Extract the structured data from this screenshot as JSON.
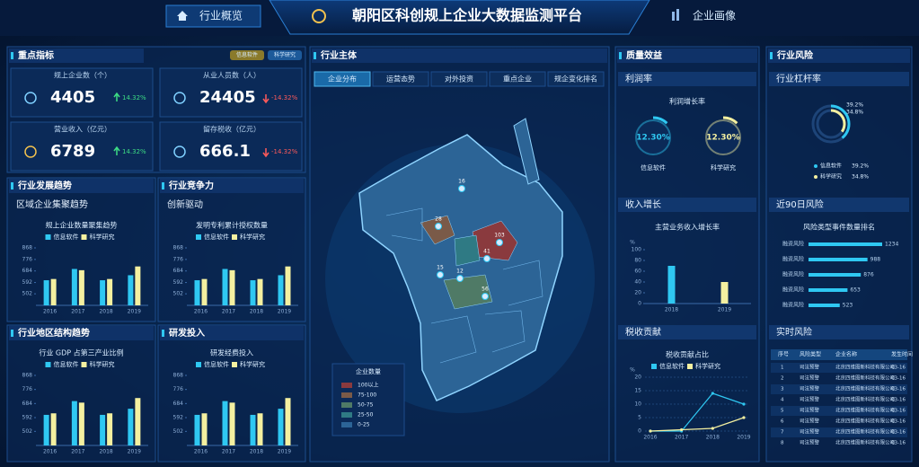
{
  "header": {
    "nav_left": "行业概览",
    "title": "朝阳区科创规上企业大数据监测平台",
    "nav_right": "企业画像"
  },
  "indicators": {
    "title": "重点指标",
    "tags": [
      "信息软件",
      "科学研究"
    ],
    "cards": [
      {
        "label": "规上企业数（个）",
        "value": 4405,
        "change": "14.32%",
        "trend": "up"
      },
      {
        "label": "从业人员数（人）",
        "value": 24405,
        "change": "-14.32%",
        "trend": "down"
      },
      {
        "label": "营业收入（亿元）",
        "value": 6789,
        "change": "14.32%",
        "trend": "up"
      },
      {
        "label": "留存税收（亿元）",
        "value": 666.1,
        "change": "-14.32%",
        "trend": "down"
      }
    ]
  },
  "small_panels": [
    {
      "title": "行业发展趋势",
      "subtitle": "区域企业集聚趋势",
      "chart_data": {
        "type": "bar",
        "title": "规上企业数量聚集趋势",
        "categories": [
          "2016",
          "2017",
          "2018",
          "2019"
        ],
        "series": [
          {
            "name": "信息软件",
            "color": "#2fc8f2",
            "values": [
              610,
              700,
              610,
              650
            ]
          },
          {
            "name": "科学研究",
            "color": "#f4f0a0",
            "values": [
              620,
              690,
              620,
              720
            ]
          }
        ],
        "ylim": [
          410,
          868
        ],
        "yticks": [
          502,
          592,
          684,
          776,
          868
        ]
      }
    },
    {
      "title": "行业竞争力",
      "subtitle": "创新驱动",
      "chart_data": {
        "type": "bar",
        "title": "发明专利累计授权数量",
        "categories": [
          "2016",
          "2017",
          "2018",
          "2019"
        ],
        "series": [
          {
            "name": "信息软件",
            "color": "#2fc8f2",
            "values": [
              610,
              700,
              610,
              650
            ]
          },
          {
            "name": "科学研究",
            "color": "#f4f0a0",
            "values": [
              620,
              690,
              620,
              720
            ]
          }
        ],
        "ylim": [
          410,
          868
        ],
        "yticks": [
          502,
          592,
          684,
          776,
          868
        ]
      }
    },
    {
      "title": "行业地区结构趋势",
      "chart_data": {
        "type": "bar",
        "title": "行业 GDP 占第三产业比例",
        "categories": [
          "2016",
          "2017",
          "2018",
          "2019"
        ],
        "series": [
          {
            "name": "信息软件",
            "color": "#2fc8f2",
            "values": [
              610,
              700,
              610,
              650
            ]
          },
          {
            "name": "科学研究",
            "color": "#f4f0a0",
            "values": [
              620,
              690,
              620,
              720
            ]
          }
        ],
        "ylim": [
          410,
          868
        ],
        "yticks": [
          502,
          592,
          684,
          776,
          868
        ]
      }
    },
    {
      "title": "研发投入",
      "chart_data": {
        "type": "bar",
        "title": "研发经费投入",
        "categories": [
          "2016",
          "2017",
          "2018",
          "2019"
        ],
        "series": [
          {
            "name": "信息软件",
            "color": "#2fc8f2",
            "values": [
              610,
              700,
              610,
              650
            ]
          },
          {
            "name": "科学研究",
            "color": "#f4f0a0",
            "values": [
              620,
              690,
              620,
              720
            ]
          }
        ],
        "ylim": [
          410,
          868
        ],
        "yticks": [
          502,
          592,
          684,
          776,
          868
        ]
      }
    }
  ],
  "distribution": {
    "title": "行业主体",
    "tabs": [
      "企业分布",
      "运营态势",
      "对外投资",
      "重点企业",
      "规企变化排名"
    ],
    "active_tab": 0,
    "markers": [
      16,
      28,
      103,
      56,
      15,
      12,
      41
    ],
    "legend_title": "企业数量",
    "legend": [
      {
        "label": "100以上",
        "color": "#8a3a3e"
      },
      {
        "label": "75-100",
        "color": "#7a5a48"
      },
      {
        "label": "50-75",
        "color": "#4f7a66"
      },
      {
        "label": "25-50",
        "color": "#2f7a84"
      },
      {
        "label": "0-25",
        "color": "#2c6496"
      }
    ]
  },
  "quality": {
    "title": "质量效益",
    "profit": {
      "title": "利润率",
      "chart_data": {
        "type": "ring",
        "title": "利润增长率",
        "names": [
          "信息软件",
          "科学研究"
        ],
        "values": [
          12.3,
          12.3
        ],
        "value_labels": [
          "12.30%",
          "12.30%"
        ],
        "colors": [
          "#2fc8f2",
          "#f4f0a0"
        ]
      }
    },
    "income": {
      "title": "收入增长",
      "chart_data": {
        "type": "bar",
        "title": "主营业务收入增长率",
        "y_unit": "%",
        "categories": [
          "2018",
          "2019"
        ],
        "values": [
          70,
          40
        ],
        "colors": [
          "#2fc8f2",
          "#f4f0a0"
        ],
        "ylim": [
          0,
          100
        ],
        "yticks": [
          0,
          20,
          40,
          60,
          80,
          100
        ]
      }
    },
    "tax": {
      "title": "税收贡献",
      "chart_data": {
        "type": "line",
        "title": "税收贡献占比",
        "y_unit": "%",
        "categories": [
          "2016",
          "2017",
          "2018",
          "2019"
        ],
        "series": [
          {
            "name": "信息软件",
            "color": "#2fc8f2",
            "values": [
              0,
              0,
              14,
              10
            ]
          },
          {
            "name": "科学研究",
            "color": "#f4f0a0",
            "values": [
              0,
              0.5,
              1,
              5
            ]
          }
        ],
        "ylim": [
          0,
          20
        ],
        "yticks": [
          0,
          5,
          10,
          15,
          20
        ]
      }
    }
  },
  "risk": {
    "title": "行业风险",
    "leverage": {
      "title": "行业杠杆率",
      "chart_data": {
        "type": "ring",
        "names": [
          "信息软件",
          "科学研究"
        ],
        "values": [
          39.2,
          34.8
        ],
        "value_labels": [
          "39.2%",
          "34.8%"
        ],
        "colors": [
          "#2fc8f2",
          "#f4f0a0"
        ]
      }
    },
    "recent": {
      "title": "近90日风险",
      "chart_data": {
        "type": "hbar",
        "title": "风险类型事件数量排名",
        "categories": [
          "融资风险",
          "融资风险",
          "融资风险",
          "融资风险",
          "融资风险"
        ],
        "values": [
          1234,
          988,
          876,
          653,
          523
        ],
        "color": "#2fc8f2"
      }
    },
    "realtime": {
      "title": "实时风险",
      "headers": [
        "序号",
        "风险类型",
        "企业名称",
        "发生时间"
      ],
      "rows": [
        [
          1,
          "司法预警",
          "北京四维图新科技有限公司",
          "03-16"
        ],
        [
          2,
          "司法预警",
          "北京四维图新科技有限公司",
          "03-16"
        ],
        [
          3,
          "司法预警",
          "北京四维图新科技有限公司",
          "03-16"
        ],
        [
          4,
          "司法预警",
          "北京四维图新科技有限公司",
          "03-16"
        ],
        [
          5,
          "司法预警",
          "北京四维图新科技有限公司",
          "03-16"
        ],
        [
          6,
          "司法预警",
          "北京四维图新科技有限公司",
          "03-16"
        ],
        [
          7,
          "司法预警",
          "北京四维图新科技有限公司",
          "03-16"
        ],
        [
          8,
          "司法预警",
          "北京四维图新科技有限公司",
          "03-16"
        ]
      ]
    }
  }
}
